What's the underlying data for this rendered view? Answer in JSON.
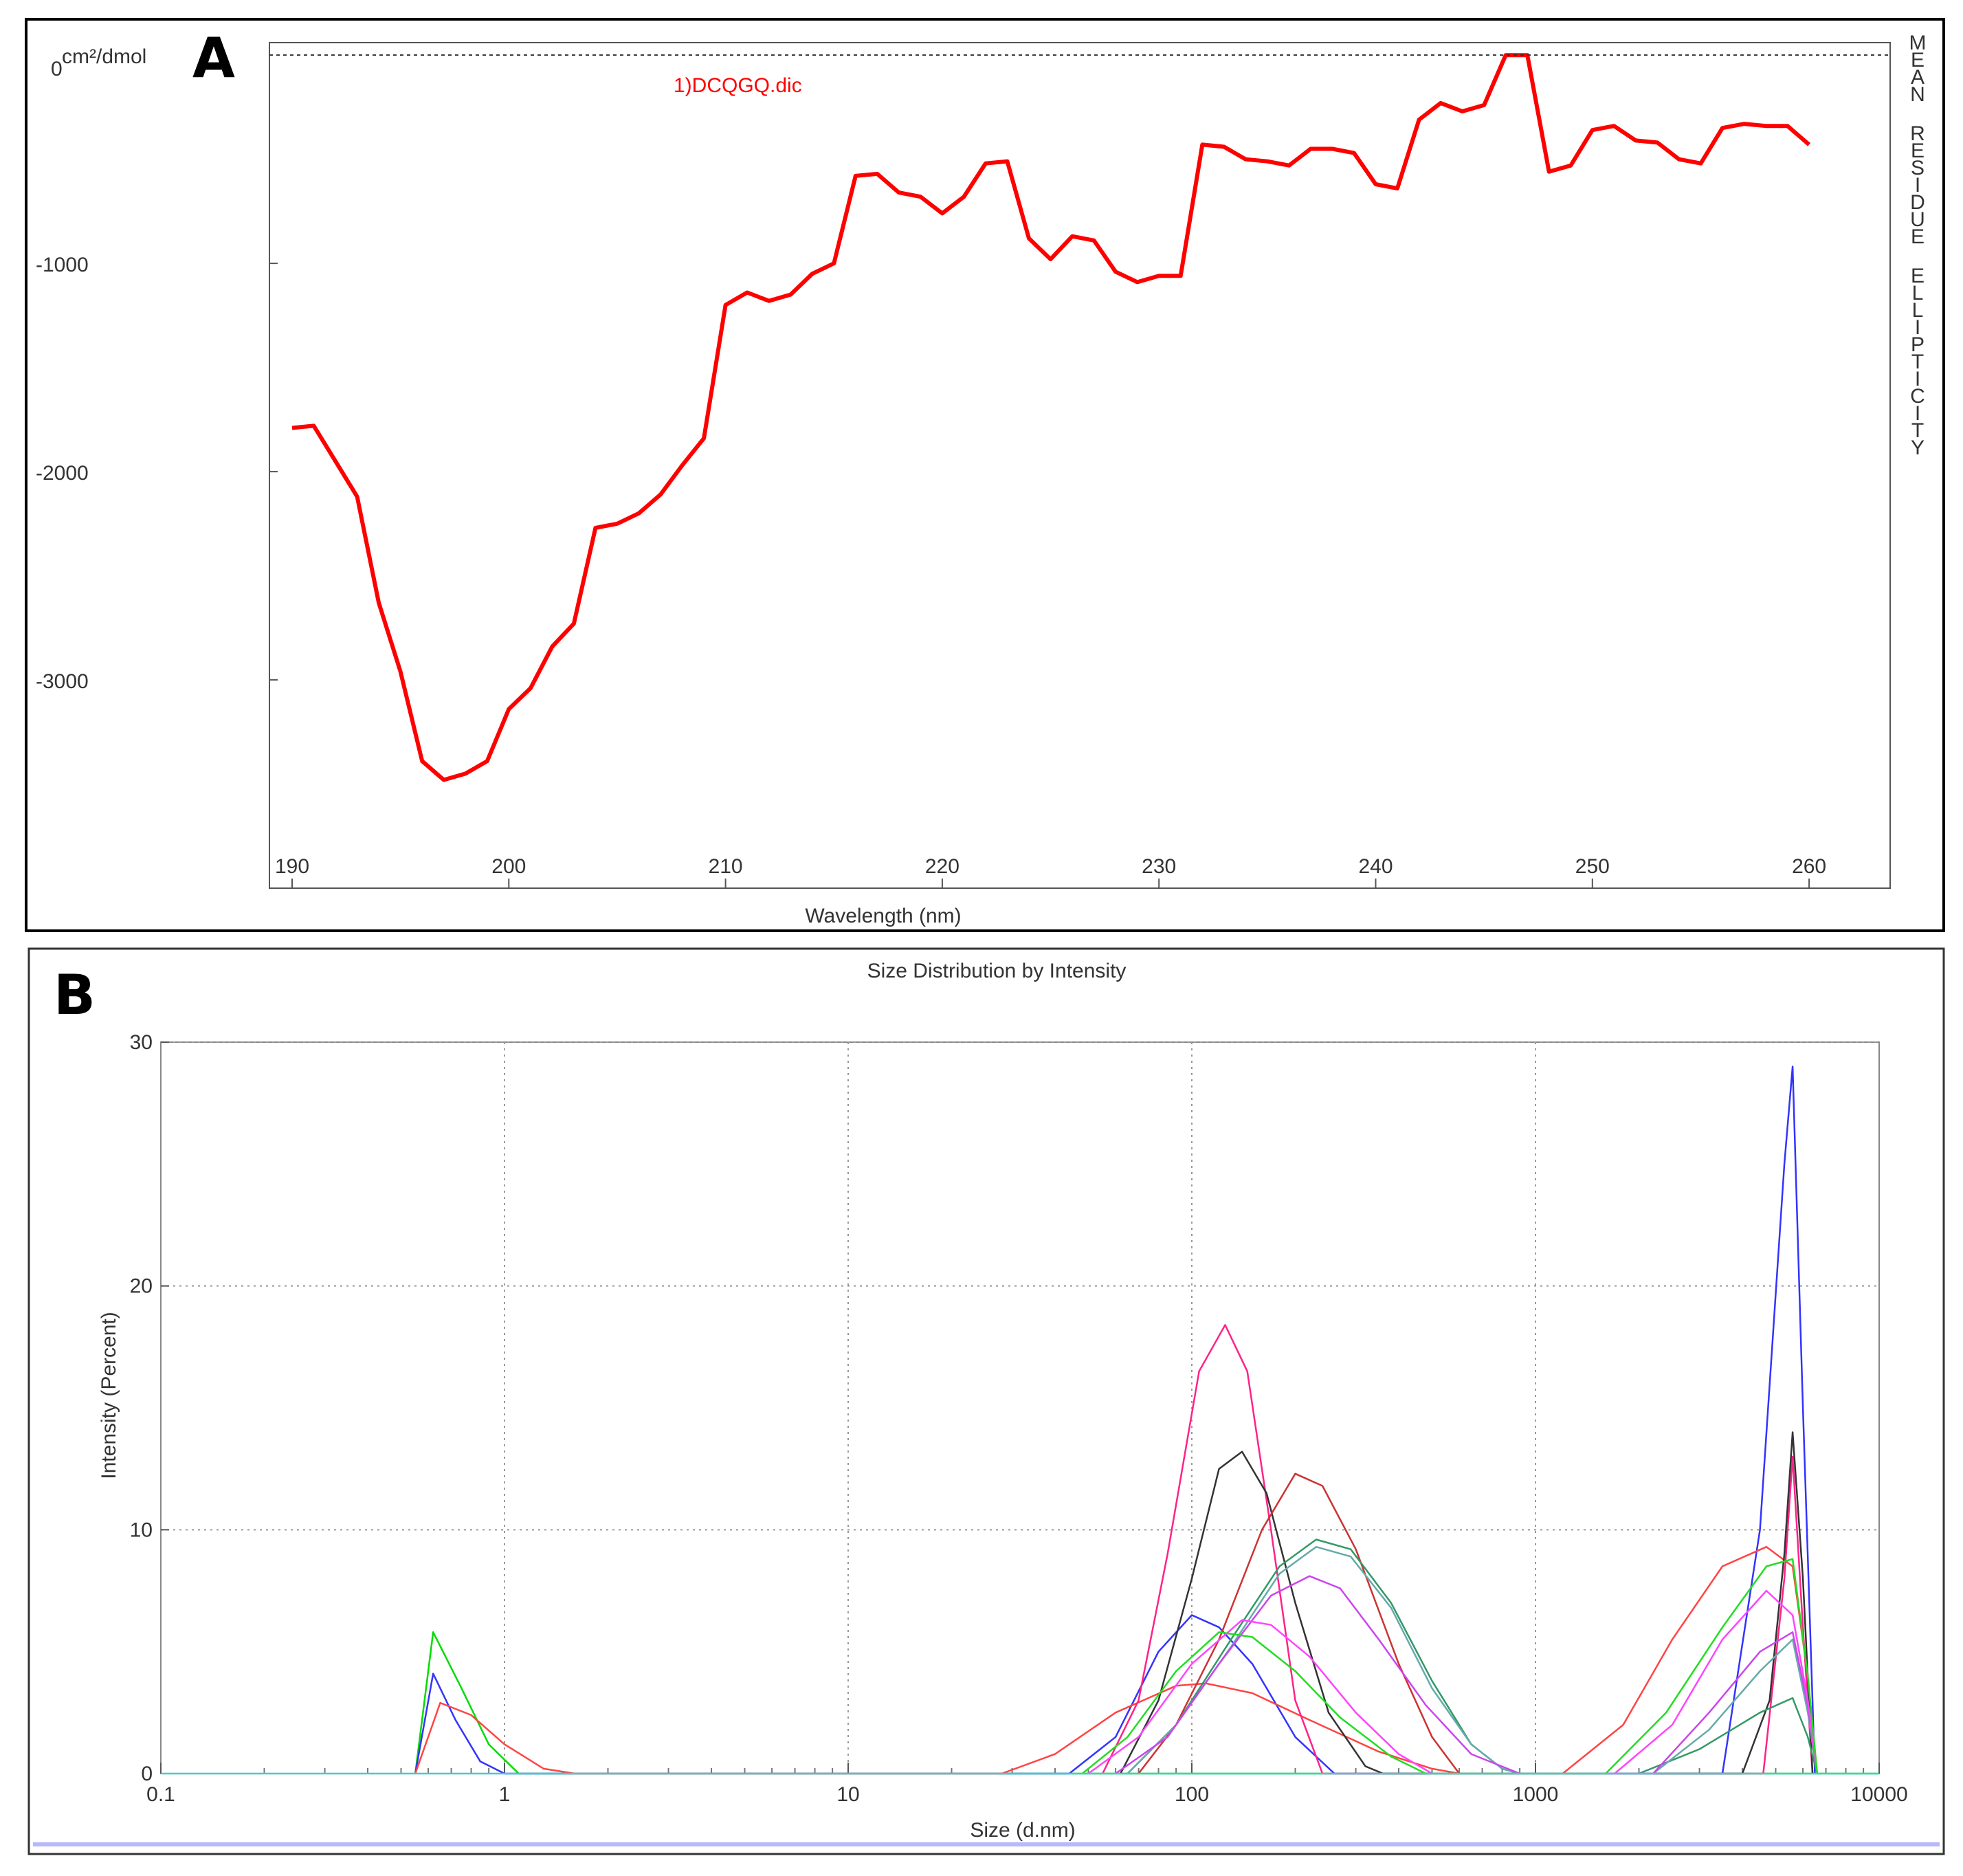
{
  "chart_data": [
    {
      "panel_label": "A",
      "type": "line",
      "title": "",
      "xlabel": "Wavelength (nm)",
      "ylabel": "cm²/dmol",
      "right_label": "MEAN RESIDUE ELLIPTICITY",
      "legend": "1)DCQGQ.dic",
      "xlim": [
        190,
        262
      ],
      "ylim": [
        -4000,
        60
      ],
      "xticks": [
        190,
        200,
        210,
        220,
        230,
        240,
        250,
        260
      ],
      "yticks": [
        0,
        -1000,
        -2000,
        -3000
      ],
      "ytick_labels": [
        "0",
        "-1000",
        "-2000",
        "-3000"
      ],
      "reference_line": 0,
      "line_color": "#ff0000",
      "x": [
        190,
        191,
        192,
        193,
        194,
        195,
        196,
        197,
        198,
        199,
        200,
        201,
        202,
        203,
        204,
        205,
        206,
        207,
        208,
        209,
        210,
        211,
        212,
        213,
        214,
        215,
        216,
        217,
        218,
        219,
        220,
        221,
        222,
        223,
        224,
        225,
        226,
        227,
        228,
        229,
        230,
        231,
        232,
        233,
        234,
        235,
        236,
        237,
        238,
        239,
        240,
        241,
        242,
        243,
        244,
        245,
        246,
        247,
        248,
        249,
        250,
        251,
        252,
        253,
        254,
        255,
        256,
        257,
        258,
        259,
        260
      ],
      "y": [
        -1790,
        -1780,
        -1950,
        -2120,
        -2630,
        -2960,
        -3390,
        -3480,
        -3450,
        -3390,
        -3140,
        -3040,
        -2840,
        -2730,
        -2270,
        -2250,
        -2200,
        -2110,
        -1970,
        -1840,
        -1200,
        -1140,
        -1180,
        -1150,
        -1050,
        -1000,
        -580,
        -570,
        -660,
        -680,
        -760,
        -680,
        -520,
        -510,
        -880,
        -980,
        -870,
        -890,
        -1040,
        -1090,
        -1060,
        -1060,
        -430,
        -440,
        -500,
        -510,
        -530,
        -450,
        -450,
        -470,
        -620,
        -640,
        -310,
        -230,
        -270,
        -240,
        0,
        0,
        -560,
        -530,
        -360,
        -340,
        -410,
        -420,
        -500,
        -520,
        -350,
        -330,
        -340,
        -340,
        -430
      ]
    },
    {
      "panel_label": "B",
      "type": "line",
      "title": "Size Distribution by Intensity",
      "xlabel": "Size (d.nm)",
      "ylabel": "Intensity (Percent)",
      "xscale": "log",
      "xlim": [
        0.1,
        10000
      ],
      "ylim": [
        0,
        30
      ],
      "xticks": [
        0.1,
        1,
        10,
        100,
        1000,
        10000
      ],
      "xtick_labels": [
        "0.1",
        "1",
        "10",
        "100",
        "1000",
        "10000"
      ],
      "yticks": [
        0,
        10,
        20,
        30
      ],
      "ytick_labels": [
        "0",
        "10",
        "20",
        "30"
      ],
      "grid": true,
      "series": [
        {
          "name": "green",
          "color": "#00dd00",
          "points": [
            [
              0.55,
              0
            ],
            [
              0.62,
              5.8
            ],
            [
              0.75,
              3.5
            ],
            [
              0.9,
              1.2
            ],
            [
              1.1,
              0
            ],
            [
              10000,
              0
            ]
          ]
        },
        {
          "name": "blue",
          "color": "#3333ff",
          "points": [
            [
              0.55,
              0
            ],
            [
              0.62,
              4.1
            ],
            [
              0.72,
              2.2
            ],
            [
              0.85,
              0.5
            ],
            [
              1.0,
              0
            ],
            [
              44,
              0
            ],
            [
              60,
              1.5
            ],
            [
              80,
              5
            ],
            [
              100,
              6.5
            ],
            [
              120,
              6
            ],
            [
              150,
              4.5
            ],
            [
              200,
              1.5
            ],
            [
              260,
              0
            ],
            [
              3500,
              0
            ],
            [
              4500,
              10
            ],
            [
              5300,
              25
            ],
            [
              5600,
              29
            ],
            [
              6000,
              15
            ],
            [
              6500,
              0
            ]
          ]
        },
        {
          "name": "red",
          "color": "#ff4444",
          "points": [
            [
              0.55,
              0
            ],
            [
              0.65,
              2.9
            ],
            [
              0.8,
              2.4
            ],
            [
              1.0,
              1.2
            ],
            [
              1.3,
              0.2
            ],
            [
              1.6,
              0
            ],
            [
              28,
              0
            ],
            [
              40,
              0.8
            ],
            [
              60,
              2.5
            ],
            [
              90,
              3.6
            ],
            [
              110,
              3.7
            ],
            [
              150,
              3.3
            ],
            [
              220,
              2.2
            ],
            [
              350,
              0.9
            ],
            [
              500,
              0.2
            ],
            [
              600,
              0
            ],
            [
              1200,
              0
            ],
            [
              1800,
              2
            ],
            [
              2500,
              5.5
            ],
            [
              3500,
              8.5
            ],
            [
              4700,
              9.3
            ],
            [
              5600,
              8.5
            ],
            [
              6200,
              4
            ],
            [
              6600,
              0
            ]
          ]
        },
        {
          "name": "pink",
          "color": "#ff2288",
          "points": [
            [
              55,
              0
            ],
            [
              70,
              3
            ],
            [
              85,
              9
            ],
            [
              105,
              16.5
            ],
            [
              125,
              18.4
            ],
            [
              145,
              16.5
            ],
            [
              170,
              10
            ],
            [
              200,
              3
            ],
            [
              240,
              0
            ],
            [
              4600,
              0
            ],
            [
              5300,
              8
            ],
            [
              5600,
              13
            ],
            [
              6000,
              6
            ],
            [
              6400,
              0
            ]
          ]
        },
        {
          "name": "black",
          "color": "#333333",
          "points": [
            [
              62,
              0
            ],
            [
              80,
              3
            ],
            [
              100,
              8
            ],
            [
              120,
              12.5
            ],
            [
              140,
              13.2
            ],
            [
              165,
              11.5
            ],
            [
              200,
              7
            ],
            [
              250,
              2.5
            ],
            [
              320,
              0.3
            ],
            [
              360,
              0
            ],
            [
              4000,
              0
            ],
            [
              4800,
              3
            ],
            [
              5300,
              9
            ],
            [
              5600,
              14
            ],
            [
              6000,
              8
            ],
            [
              6400,
              0
            ]
          ]
        },
        {
          "name": "brown",
          "color": "#cc3333",
          "points": [
            [
              70,
              0
            ],
            [
              90,
              2
            ],
            [
              120,
              5.5
            ],
            [
              160,
              10
            ],
            [
              200,
              12.3
            ],
            [
              240,
              11.8
            ],
            [
              300,
              9.2
            ],
            [
              400,
              4.5
            ],
            [
              500,
              1.5
            ],
            [
              600,
              0
            ]
          ]
        },
        {
          "name": "teal",
          "color": "#339966",
          "points": [
            [
              65,
              0
            ],
            [
              90,
              2
            ],
            [
              130,
              5.5
            ],
            [
              180,
              8.5
            ],
            [
              230,
              9.6
            ],
            [
              290,
              9.2
            ],
            [
              380,
              7
            ],
            [
              500,
              3.8
            ],
            [
              650,
              1.2
            ],
            [
              800,
              0.2
            ],
            [
              900,
              0
            ],
            [
              2000,
              0
            ],
            [
              3000,
              1
            ],
            [
              4500,
              2.5
            ],
            [
              5600,
              3.1
            ],
            [
              6200,
              1.5
            ],
            [
              6600,
              0
            ]
          ]
        },
        {
          "name": "grayblue",
          "color": "#66aaaa",
          "points": [
            [
              65,
              0
            ],
            [
              90,
              2
            ],
            [
              130,
              5.2
            ],
            [
              180,
              8.2
            ],
            [
              230,
              9.3
            ],
            [
              290,
              8.9
            ],
            [
              380,
              6.8
            ],
            [
              500,
              3.5
            ],
            [
              650,
              1.2
            ],
            [
              800,
              0.2
            ],
            [
              900,
              0
            ],
            [
              2200,
              0
            ],
            [
              3200,
              1.8
            ],
            [
              4500,
              4.2
            ],
            [
              5600,
              5.5
            ],
            [
              6200,
              2.5
            ],
            [
              6600,
              0
            ]
          ]
        },
        {
          "name": "violet",
          "color": "#cc44ee",
          "points": [
            [
              60,
              0
            ],
            [
              85,
              1.5
            ],
            [
              120,
              4.5
            ],
            [
              170,
              7.3
            ],
            [
              220,
              8.1
            ],
            [
              270,
              7.6
            ],
            [
              350,
              5.5
            ],
            [
              480,
              2.8
            ],
            [
              650,
              0.8
            ],
            [
              900,
              0
            ],
            [
              2200,
              0
            ],
            [
              3200,
              2.5
            ],
            [
              4500,
              5
            ],
            [
              5600,
              5.8
            ],
            [
              6200,
              2.8
            ],
            [
              6600,
              0
            ]
          ]
        },
        {
          "name": "magenta",
          "color": "#ff44ff",
          "points": [
            [
              50,
              0
            ],
            [
              70,
              1.5
            ],
            [
              100,
              4.5
            ],
            [
              140,
              6.3
            ],
            [
              170,
              6.1
            ],
            [
              220,
              4.8
            ],
            [
              300,
              2.5
            ],
            [
              400,
              0.8
            ],
            [
              500,
              0
            ],
            [
              1700,
              0
            ],
            [
              2500,
              2
            ],
            [
              3500,
              5.5
            ],
            [
              4700,
              7.5
            ],
            [
              5600,
              6.5
            ],
            [
              6200,
              3
            ],
            [
              6600,
              0
            ]
          ]
        },
        {
          "name": "lime",
          "color": "#22dd22",
          "points": [
            [
              48,
              0
            ],
            [
              65,
              1.5
            ],
            [
              90,
              4.2
            ],
            [
              120,
              5.8
            ],
            [
              150,
              5.6
            ],
            [
              200,
              4.2
            ],
            [
              270,
              2.3
            ],
            [
              380,
              0.7
            ],
            [
              480,
              0
            ],
            [
              1600,
              0
            ],
            [
              2400,
              2.5
            ],
            [
              3500,
              6
            ],
            [
              4700,
              8.5
            ],
            [
              5600,
              8.8
            ],
            [
              6200,
              4
            ],
            [
              6600,
              0
            ]
          ]
        },
        {
          "name": "cyan",
          "color": "#44cccc",
          "points": [
            [
              0.1,
              0
            ],
            [
              10000,
              0
            ]
          ]
        }
      ]
    }
  ]
}
